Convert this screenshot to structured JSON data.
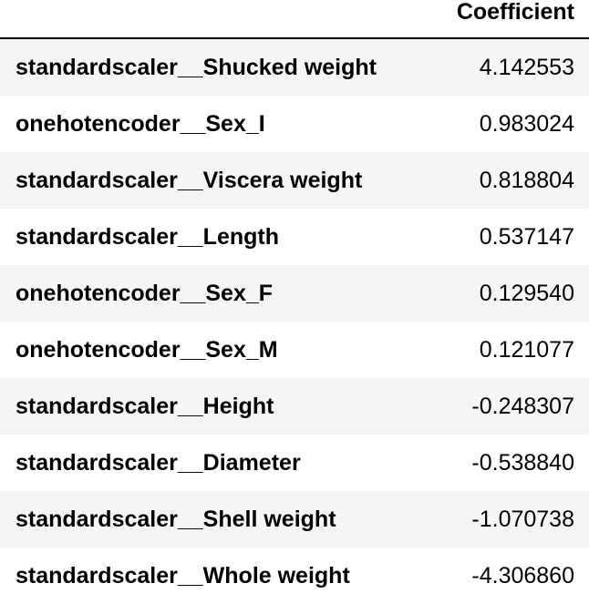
{
  "table": {
    "column_header": "Coefficient",
    "rows": [
      {
        "label": "standardscaler__Shucked weight",
        "value": "4.142553"
      },
      {
        "label": "onehotencoder__Sex_I",
        "value": "0.983024"
      },
      {
        "label": "standardscaler__Viscera weight",
        "value": "0.818804"
      },
      {
        "label": "standardscaler__Length",
        "value": "0.537147"
      },
      {
        "label": "onehotencoder__Sex_F",
        "value": "0.129540"
      },
      {
        "label": "onehotencoder__Sex_M",
        "value": "0.121077"
      },
      {
        "label": "standardscaler__Height",
        "value": "-0.248307"
      },
      {
        "label": "standardscaler__Diameter",
        "value": "-0.538840"
      },
      {
        "label": "standardscaler__Shell weight",
        "value": "-1.070738"
      },
      {
        "label": "standardscaler__Whole weight",
        "value": "-4.306860"
      }
    ]
  },
  "colors": {
    "stripe": "#f5f5f5",
    "background": "#ffffff",
    "text": "#000000"
  }
}
